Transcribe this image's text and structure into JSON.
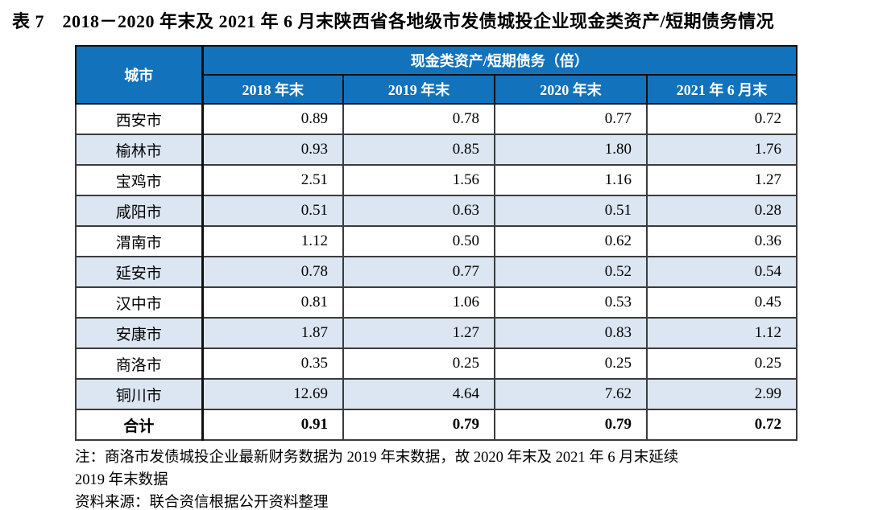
{
  "title": "表 7　2018－2020 年末及 2021 年 6 月末陕西省各地级市发债城投企业现金类资产/短期债务情况",
  "table": {
    "corner_header": "城市",
    "group_header": "现金类资产/短期债务（倍）",
    "col_headers": [
      "2018 年末",
      "2019 年末",
      "2020 年末",
      "2021 年 6 月末"
    ],
    "rows": [
      {
        "city": "西安市",
        "values": [
          "0.89",
          "0.78",
          "0.77",
          "0.72"
        ]
      },
      {
        "city": "榆林市",
        "values": [
          "0.93",
          "0.85",
          "1.80",
          "1.76"
        ]
      },
      {
        "city": "宝鸡市",
        "values": [
          "2.51",
          "1.56",
          "1.16",
          "1.27"
        ]
      },
      {
        "city": "咸阳市",
        "values": [
          "0.51",
          "0.63",
          "0.51",
          "0.28"
        ]
      },
      {
        "city": "渭南市",
        "values": [
          "1.12",
          "0.50",
          "0.62",
          "0.36"
        ]
      },
      {
        "city": "延安市",
        "values": [
          "0.78",
          "0.77",
          "0.52",
          "0.54"
        ]
      },
      {
        "city": "汉中市",
        "values": [
          "0.81",
          "1.06",
          "0.53",
          "0.45"
        ]
      },
      {
        "city": "安康市",
        "values": [
          "1.87",
          "1.27",
          "0.83",
          "1.12"
        ]
      },
      {
        "city": "商洛市",
        "values": [
          "0.35",
          "0.25",
          "0.25",
          "0.25"
        ]
      },
      {
        "city": "铜川市",
        "values": [
          "12.69",
          "4.64",
          "7.62",
          "2.99"
        ]
      }
    ],
    "total_row": {
      "city": "合计",
      "values": [
        "0.91",
        "0.79",
        "0.79",
        "0.72"
      ]
    }
  },
  "notes": {
    "line1": "注：商洛市发债城投企业最新财务数据为 2019 年末数据，故 2020 年末及 2021 年 6 月末延续",
    "line2": "2019 年末数据",
    "source": "资料来源：联合资信根据公开资料整理"
  },
  "colors": {
    "header_bg": "#1272BC",
    "stripe_bg": "#DCE6F2",
    "border": "#3B3B3B"
  }
}
